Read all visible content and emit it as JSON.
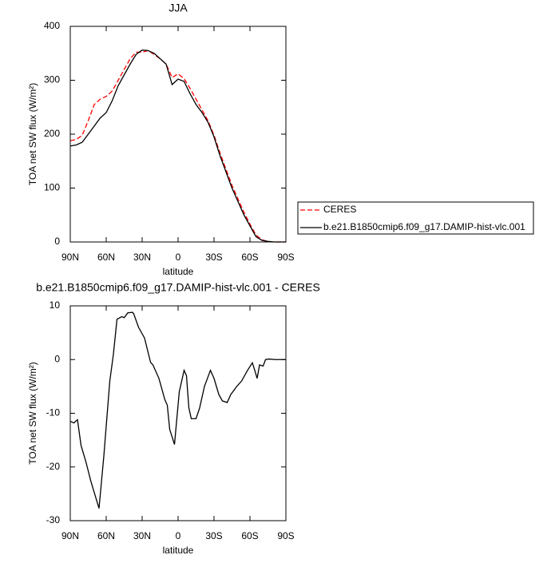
{
  "chart_data": [
    {
      "type": "line",
      "title": "JJA",
      "xlabel": "latitude",
      "ylabel": "TOA net SW flux (W/m²)",
      "xlim": [
        90,
        -90
      ],
      "xticks": [
        {
          "value": 90,
          "label": "90N"
        },
        {
          "value": 60,
          "label": "60N"
        },
        {
          "value": 30,
          "label": "30N"
        },
        0,
        {
          "value": -30,
          "label": "30S"
        },
        {
          "value": -60,
          "label": "60S"
        },
        {
          "value": -90,
          "label": "90S"
        }
      ],
      "ylim": [
        0,
        400
      ],
      "yticks": [
        0,
        100,
        200,
        300,
        400
      ],
      "legend": "right",
      "x": [
        90,
        85,
        80,
        75,
        70,
        65,
        60,
        55,
        50,
        45,
        40,
        35,
        30,
        25,
        20,
        15,
        10,
        5,
        0,
        -5,
        -10,
        -15,
        -20,
        -25,
        -30,
        -35,
        -40,
        -45,
        -50,
        -55,
        -60,
        -65,
        -70,
        -75,
        -80,
        -85,
        -90
      ],
      "series": [
        {
          "name": "CERES",
          "color": "#ff0000",
          "dash": true,
          "values": [
            188,
            190,
            198,
            225,
            255,
            265,
            270,
            280,
            300,
            320,
            340,
            352,
            352,
            355,
            348,
            340,
            330,
            305,
            312,
            303,
            285,
            265,
            245,
            225,
            198,
            165,
            135,
            105,
            80,
            55,
            33,
            13,
            4,
            1,
            0,
            0,
            0
          ]
        },
        {
          "name": "b.e21.B1850cmip6.f09_g17.DAMIP-hist-vlc.001",
          "color": "#000000",
          "dash": false,
          "values": [
            178,
            180,
            185,
            200,
            215,
            230,
            240,
            262,
            290,
            310,
            330,
            348,
            356,
            355,
            350,
            340,
            330,
            292,
            302,
            298,
            275,
            255,
            240,
            222,
            195,
            160,
            130,
            100,
            75,
            50,
            30,
            10,
            3,
            1,
            0,
            0,
            0
          ]
        }
      ]
    },
    {
      "type": "line",
      "title": "b.e21.B1850cmip6.f09_g17.DAMIP-hist-vlc.001 - CERES",
      "xlabel": "latitude",
      "ylabel": "TOA net SW flux (W/m²)",
      "xlim": [
        90,
        -90
      ],
      "xticks": [
        {
          "value": 90,
          "label": "90N"
        },
        {
          "value": 60,
          "label": "60N"
        },
        {
          "value": 30,
          "label": "30N"
        },
        0,
        {
          "value": -30,
          "label": "30S"
        },
        {
          "value": -60,
          "label": "60S"
        },
        {
          "value": -90,
          "label": "90S"
        }
      ],
      "ylim": [
        -30,
        10
      ],
      "yticks": [
        -30,
        -20,
        -10,
        0,
        10
      ],
      "x": [
        90,
        87,
        84,
        81,
        77,
        73,
        71,
        66,
        62,
        57,
        54,
        51,
        47,
        45,
        42,
        38,
        37,
        33,
        28,
        23,
        21,
        16,
        11,
        9,
        7,
        3,
        -1,
        -5,
        -7,
        -9,
        -11,
        -15,
        -18,
        -22,
        -27,
        -30,
        -34,
        -37,
        -41,
        -44,
        -49,
        -53,
        -58,
        -62,
        -64,
        -66,
        -68,
        -71,
        -73,
        -76,
        -81,
        -90
      ],
      "series": [
        {
          "color": "#000000",
          "dash": false,
          "values": [
            -11.5,
            -11.8,
            -11.2,
            -16,
            -19,
            -22.5,
            -24,
            -27.7,
            -18,
            -4,
            1,
            7.5,
            8,
            7.8,
            8.7,
            8.8,
            8.5,
            6,
            4,
            -0.5,
            -1,
            -3.5,
            -7.5,
            -8.5,
            -13,
            -15.8,
            -6,
            -2,
            -3,
            -9,
            -11,
            -11,
            -9,
            -5,
            -2,
            -3.5,
            -6.5,
            -7.7,
            -8,
            -6.5,
            -5,
            -4,
            -2,
            -0.6,
            -2,
            -3.5,
            -1,
            -1.2,
            0,
            0.1,
            0,
            0
          ]
        }
      ]
    }
  ]
}
